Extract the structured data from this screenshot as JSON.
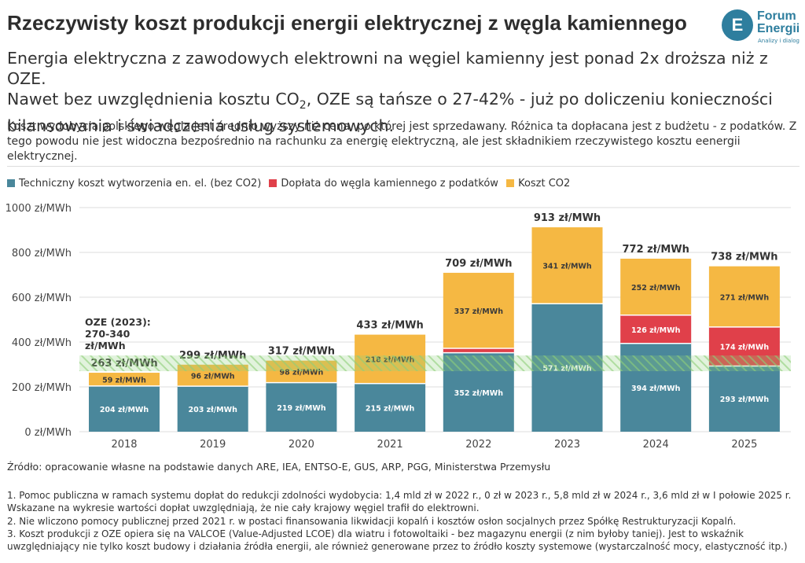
{
  "title": "Rzeczywisty koszt produkcji energii elektrycznej z węgla kamiennego",
  "logo": {
    "mark": "E",
    "name_line1": "Forum",
    "name_line2": "Energii",
    "tagline": "Analizy i dialog"
  },
  "subtitle": {
    "line1": "Energia elektryczna z zawodowych elektrowni na węgiel kamienny jest ponad 2x droższa niż z OZE.",
    "line2_pre": "Nawet bez uwzględnienia kosztu CO",
    "line2_sub": "2",
    "line2_post": ", OZE są tańsze o 27-42% - już po doliczeniu konieczności",
    "line3": "bilansowania i świadczenia usług systemowych."
  },
  "lead": "Koszt wydobycia polskiego węgla jest średnio wyższy niż cena, po której jest sprzedawany. Różnica ta dopłacana jest z budżetu - z podatków. Z tego powodu nie jest widoczna bezpośrednio na rachunku za energię elektryczną, ale jest składnikiem rzeczywistego kosztu eenergii elektrycznej.",
  "legend": [
    {
      "label": "Techniczny koszt wytworzenia en. el. (bez CO2)",
      "color": "#4a879b"
    },
    {
      "label": "Dopłata do węgla kamiennego z podatków",
      "color": "#e0404a"
    },
    {
      "label": "Koszt CO2",
      "color": "#f5b843"
    }
  ],
  "chart_data": {
    "type": "bar",
    "stacked": true,
    "categories": [
      "2018",
      "2019",
      "2020",
      "2021",
      "2022",
      "2023",
      "2024",
      "2025"
    ],
    "series": [
      {
        "name": "Techniczny koszt wytworzenia en. el. (bez CO2)",
        "color": "#4a879b",
        "values": [
          204,
          203,
          219,
          215,
          352,
          571,
          394,
          293
        ]
      },
      {
        "name": "Dopłata do węgla kamiennego z podatków",
        "color": "#e0404a",
        "values": [
          0,
          0,
          0,
          0,
          20,
          0,
          126,
          174
        ]
      },
      {
        "name": "Koszt CO2",
        "color": "#f5b843",
        "values": [
          59,
          96,
          98,
          218,
          337,
          341,
          252,
          271
        ]
      }
    ],
    "segment_labels": [
      [
        "204 zł/MWh",
        "",
        "59 zł/MWh"
      ],
      [
        "203 zł/MWh",
        "",
        "96 zł/MWh"
      ],
      [
        "219 zł/MWh",
        "",
        "98 zł/MWh"
      ],
      [
        "215 zł/MWh",
        "",
        "218 zł/MWh"
      ],
      [
        "352 zł/MWh",
        "",
        "337 zł/MWh"
      ],
      [
        "571 zł/MWh",
        "",
        "341 zł/MWh"
      ],
      [
        "394 zł/MWh",
        "126 zł/MWh",
        "252 zł/MWh"
      ],
      [
        "293 zł/MWh",
        "174 zł/MWh",
        "271 zł/MWh"
      ]
    ],
    "totals": [
      263,
      299,
      317,
      433,
      709,
      913,
      772,
      738
    ],
    "total_labels": [
      "263 zł/MWh",
      "299 zł/MWh",
      "317 zł/MWh",
      "433 zł/MWh",
      "709 zł/MWh",
      "913 zł/MWh",
      "772 zł/MWh",
      "738 zł/MWh"
    ],
    "ylim": [
      0,
      1000
    ],
    "yticks": [
      0,
      200,
      400,
      600,
      800,
      1000
    ],
    "ytick_labels": [
      "0 zł/MWh",
      "200 zł/MWh",
      "400 zł/MWh",
      "600 zł/MWh",
      "800 zł/MWh",
      "1000 zł/MWh"
    ],
    "grid": true,
    "oze_band": {
      "min": 270,
      "max": 340,
      "color": "#8ed07a",
      "label": [
        "OZE (2023):",
        "270-340",
        "zł/MWh"
      ]
    }
  },
  "source": "Źródło: opracowanie własne na podstawie danych ARE, IEA, ENTSO-E, GUS, ARP, PGG, Ministerstwa Przemysłu",
  "notes": [
    "1. Pomoc publiczna w ramach systemu dopłat do redukcji zdolności wydobycia: 1,4 mld zł w 2022 r., 0 zł w 2023 r., 5,8 mld zł w 2024 r., 3,6 mld zł w I połowie 2025 r.",
    "Wskazane na wykresie wartości dopłat uwzględniają, że nie cały krajowy węgiel trafił do elektrowni.",
    "2. Nie wliczono pomocy publicznej przed 2021 r. w postaci finansowania likwidacji kopalń i kosztów osłon socjalnych przez Spółkę Restrukturyzacji Kopalń.",
    "3. Koszt produkcji z OZE opiera się na VALCOE (Value-Adjusted LCOE) dla wiatru i fotowoltaiki - bez magazynu energii (z nim byłoby taniej). Jest to wskaźnik",
    "uwzględniający nie tylko koszt budowy i działania źródła energii, ale również generowane przez to źródło koszty systemowe (wystarczalność mocy, elastyczność itp.)"
  ]
}
